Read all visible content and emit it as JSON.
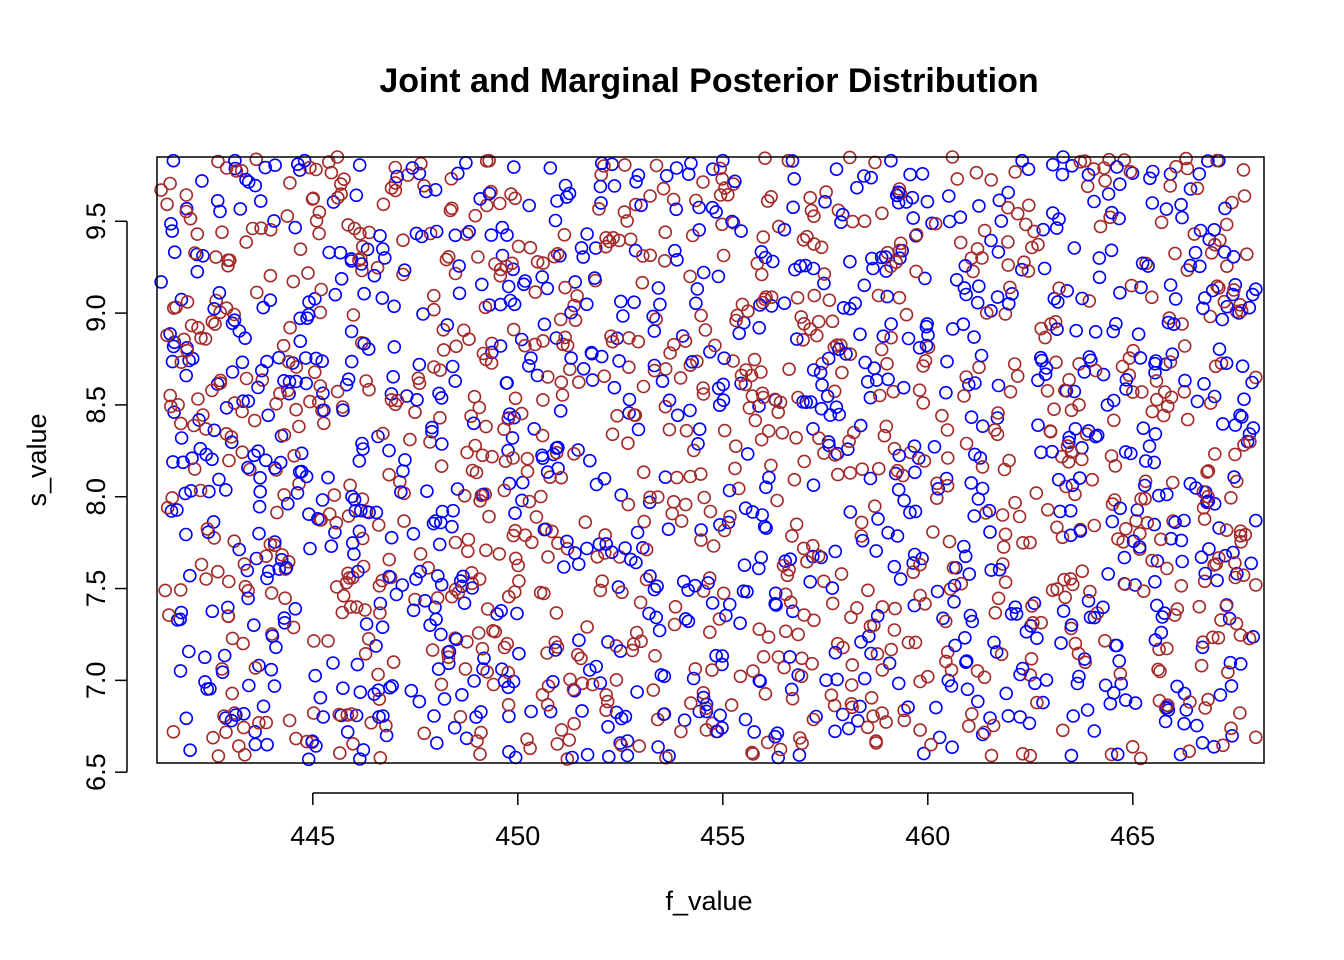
{
  "chart_data": {
    "type": "scatter",
    "title": "Joint and Marginal Posterior Distribution",
    "xlabel": "f_value",
    "ylabel": "s_value",
    "xlim": [
      441.2,
      468.2
    ],
    "ylim": [
      6.55,
      9.85
    ],
    "x_ticks": [
      445,
      450,
      455,
      460,
      465
    ],
    "x_tick_labels": [
      "445",
      "450",
      "455",
      "460",
      "465"
    ],
    "y_ticks": [
      6.5,
      7.0,
      7.5,
      8.0,
      8.5,
      9.0,
      9.5
    ],
    "y_tick_labels": [
      "6.5",
      "7.0",
      "7.5",
      "8.0",
      "8.5",
      "9.0",
      "9.5"
    ],
    "grid": false,
    "legend": "none",
    "marker": "open-circle",
    "series": [
      {
        "color": "#0000ff",
        "x_range": [
          441.4,
          468.0
        ],
        "y_range": [
          6.57,
          9.83
        ],
        "point_count": 1000,
        "sample_points": [
          [
            441.3,
            9.17
          ],
          [
            441.6,
            9.83
          ],
          [
            441.8,
            8.32
          ],
          [
            442.0,
            7.57
          ],
          [
            442.4,
            8.23
          ],
          [
            443.1,
            9.83
          ],
          [
            443.3,
            8.52
          ],
          [
            444.1,
            7.18
          ],
          [
            444.8,
            9.83
          ],
          [
            444.9,
            6.57
          ],
          [
            445.4,
            9.33
          ],
          [
            446.2,
            8.29
          ],
          [
            446.8,
            6.7
          ],
          [
            447.6,
            9.76
          ],
          [
            448.7,
            7.42
          ],
          [
            450.1,
            7.98
          ],
          [
            450.4,
            8.37
          ],
          [
            450.8,
            6.83
          ],
          [
            451.4,
            9.17
          ],
          [
            452.3,
            9.81
          ],
          [
            453.5,
            7.03
          ],
          [
            454.2,
            8.47
          ],
          [
            455.0,
            9.83
          ],
          [
            455.4,
            8.89
          ],
          [
            456.3,
            7.41
          ],
          [
            457.2,
            8.37
          ],
          [
            458.1,
            9.28
          ],
          [
            459.1,
            9.83
          ],
          [
            459.7,
            7.92
          ],
          [
            460.5,
            7.0
          ],
          [
            461.0,
            8.61
          ],
          [
            462.3,
            9.83
          ],
          [
            462.6,
            7.42
          ],
          [
            463.3,
            9.85
          ],
          [
            463.6,
            8.37
          ],
          [
            464.4,
            7.58
          ],
          [
            465.2,
            9.14
          ],
          [
            465.6,
            7.65
          ],
          [
            466.2,
            9.52
          ],
          [
            466.7,
            7.18
          ],
          [
            467.1,
            9.83
          ],
          [
            467.8,
            8.3
          ],
          [
            468.0,
            9.13
          ],
          [
            468.0,
            7.87
          ]
        ]
      },
      {
        "color": "#a52a2a",
        "x_range": [
          441.4,
          468.0
        ],
        "y_range": [
          6.57,
          9.85
        ],
        "point_count": 1000,
        "sample_points": [
          [
            441.3,
            9.67
          ],
          [
            441.4,
            7.49
          ],
          [
            441.6,
            6.72
          ],
          [
            442.2,
            8.92
          ],
          [
            442.9,
            9.79
          ],
          [
            443.3,
            7.2
          ],
          [
            444.3,
            8.01
          ],
          [
            445.6,
            9.85
          ],
          [
            446.3,
            8.63
          ],
          [
            446.9,
            7.56
          ],
          [
            447.2,
            9.21
          ],
          [
            448.1,
            8.43
          ],
          [
            449.3,
            9.83
          ],
          [
            449.9,
            8.91
          ],
          [
            450.3,
            6.63
          ],
          [
            451.1,
            8.83
          ],
          [
            452.6,
            9.55
          ],
          [
            452.9,
            7.26
          ],
          [
            453.6,
            8.49
          ],
          [
            454.6,
            6.73
          ],
          [
            455.7,
            8.66
          ],
          [
            456.6,
            9.83
          ],
          [
            456.8,
            7.85
          ],
          [
            457.6,
            9.07
          ],
          [
            458.4,
            8.15
          ],
          [
            459.8,
            8.58
          ],
          [
            460.0,
            7.02
          ],
          [
            460.6,
            9.85
          ],
          [
            461.7,
            8.34
          ],
          [
            462.5,
            6.59
          ],
          [
            463.0,
            8.94
          ],
          [
            463.6,
            7.2
          ],
          [
            464.3,
            9.79
          ],
          [
            465.0,
            8.57
          ],
          [
            465.8,
            6.85
          ],
          [
            466.5,
            9.43
          ],
          [
            466.9,
            8.51
          ],
          [
            467.5,
            7.56
          ],
          [
            467.7,
            9.78
          ],
          [
            468.0,
            8.65
          ],
          [
            468.0,
            6.69
          ],
          [
            468.0,
            7.52
          ]
        ]
      }
    ]
  }
}
